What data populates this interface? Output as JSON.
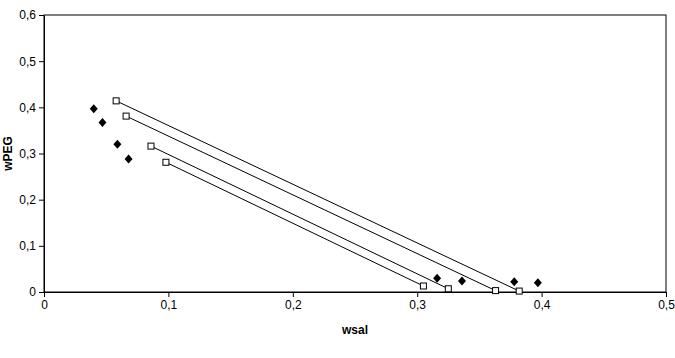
{
  "chart_data": {
    "type": "scatter",
    "x_label": "wsal",
    "y_label": "wPEG",
    "xlim": [
      0,
      0.5
    ],
    "ylim": [
      0,
      0.6
    ],
    "xticks": [
      0,
      {
        "value": 0.1,
        "label": "0,1"
      },
      {
        "value": 0.2,
        "label": "0,2"
      },
      {
        "value": 0.3,
        "label": "0,3"
      },
      {
        "value": 0.4,
        "label": "0,4"
      },
      {
        "value": 0.5,
        "label": "0,5"
      }
    ],
    "yticks": [
      0,
      {
        "value": 0.1,
        "label": "0,1"
      },
      {
        "value": 0.2,
        "label": "0,2"
      },
      {
        "value": 0.3,
        "label": "0,3"
      },
      {
        "value": 0.4,
        "label": "0,4"
      },
      {
        "value": 0.5,
        "label": "0,5"
      },
      {
        "value": 0.6,
        "label": "0,6"
      }
    ],
    "grid": false,
    "series": [
      {
        "type": "scatter",
        "marker": "diamond",
        "color": "#000000",
        "x": [
          0.04,
          0.047,
          0.059,
          0.068,
          0.316,
          0.336,
          0.378,
          0.397
        ],
        "values": [
          0.397,
          0.367,
          0.32,
          0.288,
          0.03,
          0.024,
          0.022,
          0.02
        ]
      },
      {
        "type": "line",
        "marker": "square",
        "color": "#000000",
        "x": [
          0.058,
          0.382
        ],
        "values": [
          0.414,
          0.002
        ]
      },
      {
        "type": "line",
        "marker": "square",
        "color": "#000000",
        "x": [
          0.066,
          0.363
        ],
        "values": [
          0.381,
          0.003
        ]
      },
      {
        "type": "line",
        "marker": "square",
        "color": "#000000",
        "x": [
          0.086,
          0.325
        ],
        "values": [
          0.316,
          0.007
        ]
      },
      {
        "type": "line",
        "marker": "square",
        "color": "#000000",
        "x": [
          0.098,
          0.305
        ],
        "values": [
          0.281,
          0.013
        ]
      }
    ]
  }
}
